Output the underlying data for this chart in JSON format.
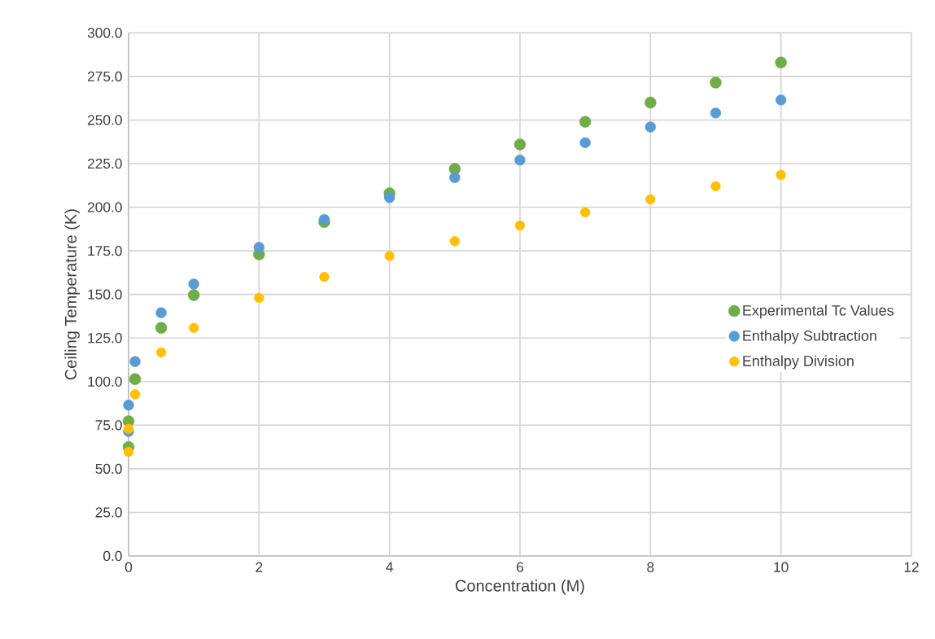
{
  "chart_data": {
    "type": "scatter",
    "xlabel": "Concentration (M)",
    "ylabel": "Ceiling Temperature (K)",
    "xlim": [
      0,
      12
    ],
    "xticks": [
      0,
      2,
      4,
      6,
      8,
      10,
      12
    ],
    "ylim": [
      0,
      300
    ],
    "yticks": [
      {
        "value": 0,
        "label": "0.0"
      },
      {
        "value": 25,
        "label": "25.0"
      },
      {
        "value": 50,
        "label": "50.0"
      },
      {
        "value": 75,
        "label": "75.0"
      },
      {
        "value": 100,
        "label": "100.0"
      },
      {
        "value": 125,
        "label": "125.0"
      },
      {
        "value": 150,
        "label": "150.0"
      },
      {
        "value": 175,
        "label": "175.0"
      },
      {
        "value": 200,
        "label": "200.0"
      },
      {
        "value": 225,
        "label": "225.0"
      },
      {
        "value": 250,
        "label": "250.0"
      },
      {
        "value": 275,
        "label": "275.0"
      },
      {
        "value": 300,
        "label": "300.0"
      }
    ],
    "grid": true,
    "legend": "right",
    "marker": "circle",
    "series": [
      {
        "name": "Experimental Tc Values",
        "color": "#70ad47",
        "x": [
          0,
          0,
          0.1,
          0.5,
          1,
          2,
          3,
          4,
          5,
          6,
          7,
          8,
          9,
          10
        ],
        "values": [
          62.5,
          77.3,
          101.4,
          130.8,
          149.6,
          173,
          191.5,
          208,
          222,
          236,
          249,
          260,
          271.5,
          283
        ]
      },
      {
        "name": "Enthalpy Subtraction",
        "color": "#5b9bd5",
        "x": [
          0,
          0,
          0.1,
          0.5,
          1,
          2,
          3,
          4,
          5,
          6,
          7,
          8,
          9,
          10
        ],
        "values": [
          71.4,
          86.5,
          111.5,
          139.5,
          155.9,
          177,
          193,
          205.5,
          217,
          227,
          237,
          246,
          254,
          261.5
        ]
      },
      {
        "name": "Enthalpy Division",
        "color": "#ffc000",
        "x": [
          0,
          0,
          0.1,
          0.5,
          1,
          2,
          3,
          4,
          5,
          6,
          7,
          8,
          9,
          10
        ],
        "values": [
          59.7,
          72.9,
          92.7,
          116.8,
          130.8,
          148,
          160,
          172,
          180.5,
          189.5,
          197,
          204.5,
          212,
          218.5
        ]
      }
    ]
  }
}
